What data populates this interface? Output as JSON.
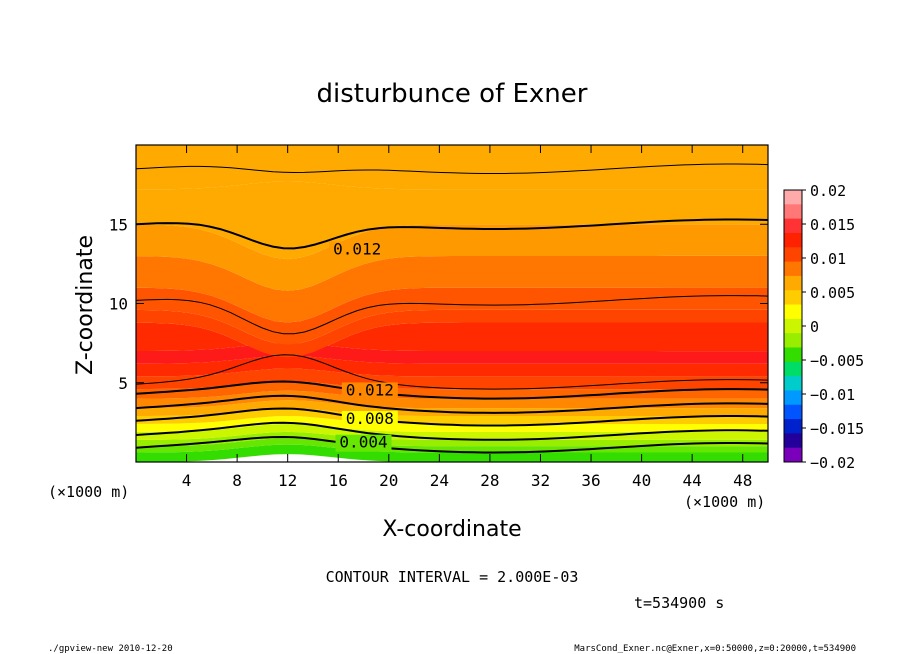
{
  "chart_data": {
    "type": "heatmap",
    "title": "disturbunce of Exner",
    "xlabel": "X-coordinate",
    "ylabel": "Z-coordinate",
    "x_unit": "(×1000 m)",
    "y_unit": "(×1000 m)",
    "xlim": [
      0,
      50
    ],
    "ylim": [
      0,
      20
    ],
    "x_ticks": [
      "4",
      "8",
      "12",
      "16",
      "20",
      "24",
      "28",
      "32",
      "36",
      "40",
      "44",
      "48"
    ],
    "y_ticks": [
      "5",
      "10",
      "15"
    ],
    "colorbar": {
      "range": [
        -0.02,
        0.02
      ],
      "labels": [
        "0.02",
        "0.015",
        "0.01",
        "0.005",
        "0",
        "−0.005",
        "−0.01",
        "−0.015",
        "−0.02"
      ]
    },
    "contour_interval": "CONTOUR INTERVAL = 2.000E-03",
    "contour_labels": [
      "0.012",
      "0.012",
      "0.008",
      "0.004"
    ],
    "time_label": "t=534900 s"
  },
  "footer": {
    "left": "./gpview-new  2010-12-20",
    "right": "MarsCond_Exner.nc@Exner,x=0:50000,z=0:20000,t=534900"
  },
  "colors": {
    "bands": [
      "#33dd00",
      "#66e600",
      "#99ee00",
      "#ccf500",
      "#ffff00",
      "#ffcc00",
      "#ffaa00",
      "#ff9900",
      "#ff7700",
      "#ff5500",
      "#ff3300",
      "#ff2200",
      "#ff1c1c",
      "#ff6666",
      "#ff9999"
    ],
    "negative": [
      "#8800cc",
      "#2200aa",
      "#0033ff",
      "#0088ff",
      "#00cccc",
      "#00dd66",
      "#00cc33"
    ]
  }
}
